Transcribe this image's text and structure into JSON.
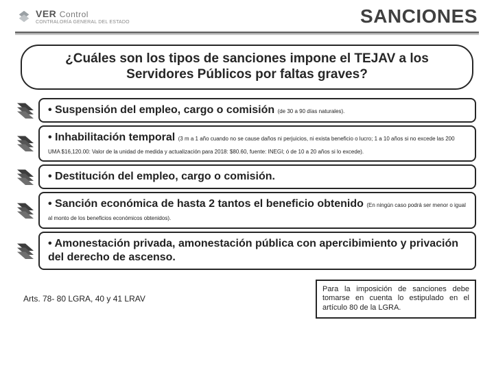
{
  "header": {
    "logo": {
      "ver": "VER",
      "control": "Control",
      "sub": "CONTRALORÍA GENERAL DEL ESTADO"
    },
    "title": "SANCIONES"
  },
  "question": "¿Cuáles son los tipos de sanciones impone el TEJAV a los Servidores Públicos por faltas graves?",
  "items": [
    {
      "lead": "• Suspensión del empleo, cargo o comisión ",
      "note": "(de 30 a 90 días naturales)."
    },
    {
      "lead": "• Inhabilitación temporal ",
      "note": "(3 m a 1 año cuando no se cause daños ni perjuicios, ni exista beneficio o lucro; 1 a 10 años si no excede las 200 UMA $16,120.00: Valor de la unidad de medida y actualización para 2018:  $80.60, fuente: INEGI; ó de 10 a 20 años si lo excede)."
    },
    {
      "lead": "• Destitución del empleo, cargo o comisión.",
      "note": ""
    },
    {
      "lead": "• Sanción económica de hasta 2 tantos el beneficio obtenido ",
      "note": "(En ningún caso podrá ser menor o igual al monto de los beneficios económicos obtenidos)."
    },
    {
      "lead": "• Amonestación privada, amonestación pública con apercibimiento y privación del derecho de ascenso.",
      "note": ""
    }
  ],
  "footer": {
    "left": "Arts. 78- 80 LGRA, 40 y 41 LRAV",
    "right": "Para la imposición de sanciones debe tomarse en cuenta lo estipulado en el artículo 80 de la LGRA."
  },
  "colors": {
    "hr": "#6d6d6d",
    "border": "#262626",
    "arrow": "#3d3d3d",
    "text": "#222222",
    "bg": "#ffffff"
  }
}
